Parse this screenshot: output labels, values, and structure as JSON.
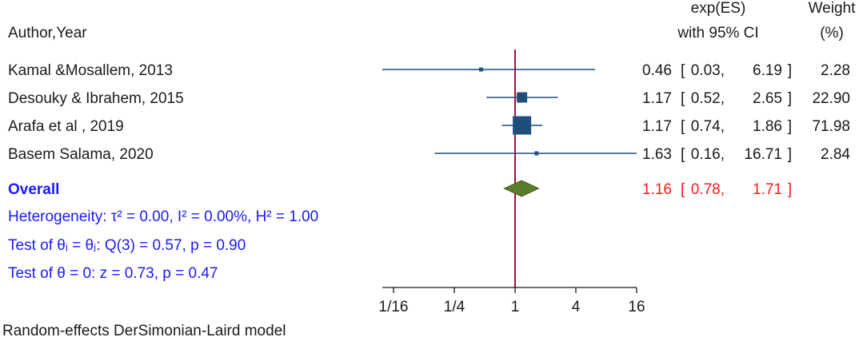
{
  "header": {
    "col_study": "Author,Year",
    "col_es_line1": "exp(ES)",
    "col_es_line2": "with 95% CI",
    "col_weight_line1": "Weight",
    "col_weight_line2": "(%)"
  },
  "overall": {
    "label": "Overall",
    "heterogeneity": "Heterogeneity: τ² = 0.00, I² = 0.00%, H² = 1.00",
    "test_theta_eq": "Test of θᵢ = θⱼ: Q(3) = 0.57, p = 0.90",
    "test_theta_zero": "Test of θ = 0: z = 0.73, p = 0.47"
  },
  "footer": {
    "model": "Random-effects DerSimonian-Laird model"
  },
  "colors": {
    "study": "#1f4e79",
    "overall_diamond": "#5a7d2b",
    "null_line": "#a0103c",
    "overall_text": "#ff1a1a",
    "stats_text": "#1a1aff"
  },
  "chart_data": {
    "type": "forest",
    "scale": "log2",
    "xlim": [
      0.0484,
      16
    ],
    "null_value": 1,
    "x_ticks": [
      0.0625,
      0.25,
      1,
      4,
      16
    ],
    "x_tick_labels": [
      "1/16",
      "1/4",
      "1",
      "4",
      "16"
    ],
    "studies": [
      {
        "label": "Kamal &Mosallem, 2013",
        "es": 0.46,
        "lo": 0.03,
        "hi": 6.19,
        "weight": 2.28,
        "es_text": "0.46",
        "lo_text": "0.03",
        "hi_text": "6.19",
        "weight_text": "2.28"
      },
      {
        "label": "Desouky & Ibrahem, 2015",
        "es": 1.17,
        "lo": 0.52,
        "hi": 2.65,
        "weight": 22.9,
        "es_text": "1.17",
        "lo_text": "0.52",
        "hi_text": "2.65",
        "weight_text": "22.90"
      },
      {
        "label": "Arafa et al , 2019",
        "es": 1.17,
        "lo": 0.74,
        "hi": 1.86,
        "weight": 71.98,
        "es_text": "1.17",
        "lo_text": "0.74",
        "hi_text": "1.86",
        "weight_text": "71.98"
      },
      {
        "label": "Basem Salama, 2020",
        "es": 1.63,
        "lo": 0.16,
        "hi": 16.71,
        "weight": 2.84,
        "es_text": "1.63",
        "lo_text": "0.16",
        "hi_text": "16.71",
        "weight_text": "2.84"
      }
    ],
    "overall": {
      "es": 1.16,
      "lo": 0.78,
      "hi": 1.71,
      "es_text": "1.16",
      "lo_text": "0.78",
      "hi_text": "1.71"
    }
  }
}
